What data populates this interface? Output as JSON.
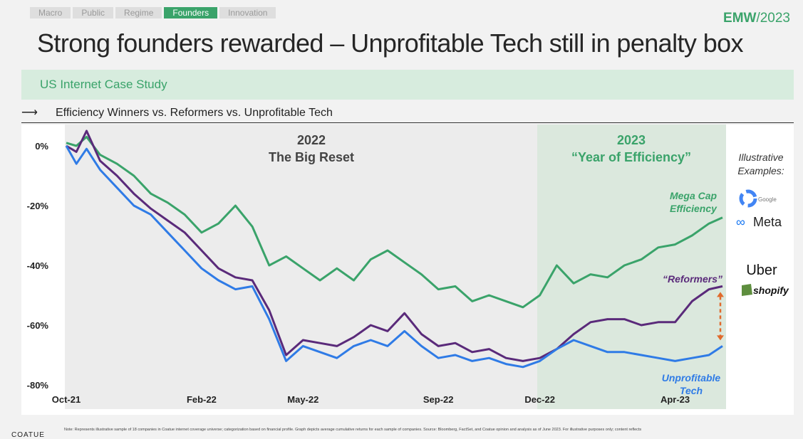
{
  "nav": {
    "tabs": [
      "Macro",
      "Public",
      "Regime",
      "Founders",
      "Innovation"
    ],
    "active": "Founders"
  },
  "brand": {
    "name": "EMW",
    "year": "/2023"
  },
  "headline": "Strong founders rewarded – Unprofitable Tech still in penalty box",
  "band_label": "US Internet Case Study",
  "subtitle": "Efficiency Winners vs. Reformers vs. Unprofitable Tech",
  "footer": {
    "logo": "COATUE",
    "note": "Note: Represents illustrative sample of 18 companies in Coatue internet coverage universe; categorization based on financial profile. Graph depicts average cumulative returns for each sample of companies. Source: Bloomberg, FactSet, and Coatue opinion and analysis as of June 2023. For illustrative purposes only; content reflects"
  },
  "chart_data": {
    "type": "line",
    "x_ticks": [
      "Oct-21",
      "Feb-22",
      "May-22",
      "Sep-22",
      "Dec-22",
      "Apr-23"
    ],
    "y_ticks": [
      "0%",
      "-20%",
      "-40%",
      "-60%",
      "-80%"
    ],
    "ylim": [
      -80,
      5
    ],
    "x_unit": "months since Oct-21",
    "xlim": [
      0,
      19.4
    ],
    "periods": [
      {
        "title": "2022",
        "subtitle": "The Big Reset",
        "color": "#444444"
      },
      {
        "title": "2023",
        "subtitle": "“Year of Efficiency”",
        "color": "#3aa36a"
      }
    ],
    "illustrative": {
      "label_1": "Illustrative",
      "label_2": "Examples:",
      "logos": [
        "Google",
        "Meta",
        "Uber",
        "shopify"
      ]
    },
    "series": [
      {
        "name": "Mega Cap Efficiency",
        "label_1": "Mega Cap",
        "label_2": "Efficiency",
        "color": "#3aa36a",
        "x": [
          0,
          0.3,
          0.6,
          1.0,
          1.5,
          2.0,
          2.5,
          3.0,
          3.5,
          4.0,
          4.5,
          5.0,
          5.5,
          6.0,
          6.5,
          7.0,
          7.5,
          8.0,
          8.5,
          9.0,
          9.5,
          10.0,
          10.5,
          11.0,
          11.5,
          12.0,
          12.5,
          13.0,
          13.5,
          14.0,
          14.5,
          15.0,
          15.5,
          16.0,
          16.5,
          17.0,
          17.5,
          18.0,
          18.5,
          19.0,
          19.4
        ],
        "values": [
          1,
          0,
          3,
          -3,
          -6,
          -10,
          -16,
          -19,
          -23,
          -29,
          -26,
          -20,
          -27,
          -40,
          -37,
          -41,
          -45,
          -41,
          -45,
          -38,
          -35,
          -39,
          -43,
          -48,
          -47,
          -52,
          -50,
          -52,
          -54,
          -50,
          -40,
          -46,
          -43,
          -44,
          -40,
          -38,
          -34,
          -33,
          -30,
          -26,
          -24
        ]
      },
      {
        "name": "Reformers",
        "label": "“Reformers”",
        "color": "#5a2a7a",
        "x": [
          0,
          0.3,
          0.6,
          1.0,
          1.5,
          2.0,
          2.5,
          3.0,
          3.5,
          4.0,
          4.5,
          5.0,
          5.5,
          6.0,
          6.5,
          7.0,
          7.5,
          8.0,
          8.5,
          9.0,
          9.5,
          10.0,
          10.5,
          11.0,
          11.5,
          12.0,
          12.5,
          13.0,
          13.5,
          14.0,
          14.5,
          15.0,
          15.5,
          16.0,
          16.5,
          17.0,
          17.5,
          18.0,
          18.5,
          19.0,
          19.4
        ],
        "values": [
          0,
          -2,
          5,
          -5,
          -10,
          -16,
          -21,
          -25,
          -29,
          -35,
          -41,
          -44,
          -45,
          -55,
          -70,
          -65,
          -66,
          -67,
          -64,
          -60,
          -62,
          -56,
          -63,
          -67,
          -66,
          -69,
          -68,
          -71,
          -72,
          -71,
          -68,
          -63,
          -59,
          -58,
          -58,
          -60,
          -59,
          -59,
          -52,
          -48,
          -47
        ]
      },
      {
        "name": "Unprofitable Tech",
        "label_1": "Unprofitable",
        "label_2": "Tech",
        "color": "#2f7be6",
        "x": [
          0,
          0.3,
          0.6,
          1.0,
          1.5,
          2.0,
          2.5,
          3.0,
          3.5,
          4.0,
          4.5,
          5.0,
          5.5,
          6.0,
          6.5,
          7.0,
          7.5,
          8.0,
          8.5,
          9.0,
          9.5,
          10.0,
          10.5,
          11.0,
          11.5,
          12.0,
          12.5,
          13.0,
          13.5,
          14.0,
          14.5,
          15.0,
          15.5,
          16.0,
          16.5,
          17.0,
          17.5,
          18.0,
          18.5,
          19.0,
          19.4
        ],
        "values": [
          0,
          -6,
          -1,
          -8,
          -14,
          -20,
          -23,
          -29,
          -35,
          -41,
          -45,
          -48,
          -47,
          -58,
          -72,
          -67,
          -69,
          -71,
          -67,
          -65,
          -67,
          -62,
          -67,
          -71,
          -70,
          -72,
          -71,
          -73,
          -74,
          -72,
          -68,
          -65,
          -67,
          -69,
          -69,
          -70,
          -71,
          -72,
          -71,
          -70,
          -67
        ]
      }
    ],
    "gap_arrow": {
      "from": -47,
      "to": -67,
      "color": "#e06a2c"
    }
  }
}
